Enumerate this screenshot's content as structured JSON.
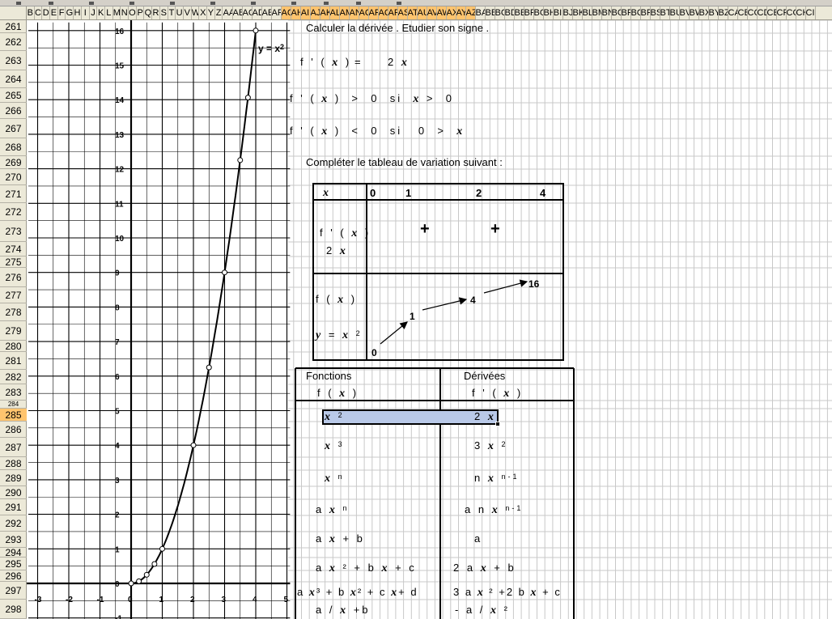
{
  "column_header": {
    "letters": [
      "B",
      "C",
      "D",
      "E",
      "F",
      "G",
      "H",
      "I",
      "J",
      "K",
      "L",
      "M",
      "N",
      "O",
      "P",
      "Q",
      "R",
      "S",
      "T",
      "U",
      "V",
      "W",
      "X",
      "Y",
      "Z",
      "AA",
      "AB",
      "AC",
      "AD",
      "AE",
      "AF",
      "AG",
      "AH",
      "AI",
      "AJ",
      "AK",
      "AL",
      "AM",
      "AN",
      "AO",
      "AP",
      "AQ",
      "AR",
      "AS",
      "AT",
      "AU",
      "AV",
      "AW",
      "AX",
      "AY",
      "AZ",
      "BA",
      "BB",
      "BC",
      "BD",
      "BE",
      "BF",
      "BG",
      "BH",
      "BI",
      "BJ",
      "BK",
      "BL",
      "BM",
      "BN",
      "BO",
      "BP",
      "BQ",
      "BR",
      "BS",
      "BT",
      "BU",
      "BV",
      "BW",
      "BX",
      "BY",
      "BZ",
      "CA",
      "CB",
      "CC",
      "CD",
      "CE",
      "CF",
      "CG",
      "CH",
      "CI"
    ]
  },
  "row_header": {
    "rows": [
      "261",
      "262",
      "263",
      "264",
      "265",
      "266",
      "267",
      "268",
      "269",
      "270",
      "271",
      "272",
      "273",
      "274",
      "275",
      "276",
      "277",
      "278",
      "279",
      "280",
      "281",
      "282",
      "283",
      "284",
      "285",
      "286",
      "287",
      "288",
      "289",
      "290",
      "291",
      "292",
      "293",
      "294",
      "295",
      "296",
      "297",
      "298"
    ],
    "selected": "285"
  },
  "chart": {
    "label_main": "y = x",
    "label_sup": "2",
    "y_ticks": [
      "16",
      "15",
      "14",
      "13",
      "12",
      "11",
      "10",
      "9",
      "8",
      "7",
      "6",
      "5",
      "4",
      "3",
      "2",
      "1",
      "0",
      "-1"
    ],
    "x_ticks": [
      "-3",
      "-2",
      "-1",
      "0",
      "1",
      "2",
      "3",
      "4",
      "5"
    ]
  },
  "chart_data": {
    "type": "scatter",
    "series": [
      {
        "name": "y = x²",
        "x": [
          0,
          0.25,
          0.5,
          0.75,
          1,
          2,
          2.5,
          3,
          3.5,
          3.75,
          4
        ],
        "y": [
          0,
          0.0625,
          0.25,
          0.5625,
          1,
          4,
          6.25,
          9,
          12.25,
          14.06,
          16
        ]
      }
    ],
    "xlim": [
      -3,
      5
    ],
    "ylim": [
      -1,
      16
    ],
    "grid": true,
    "legend": "none"
  },
  "worksheet": {
    "instruction_1": "Calculer la dérivée . Etudier son signe .",
    "derivative_eq": {
      "lhs": "f ' ( x )",
      "eq": "=",
      "rhs": "2 x"
    },
    "positive": {
      "lhs": "f ' ( x )",
      "op": ">",
      "zero": "0",
      "si": "si",
      "cond": "x >",
      "cond_zero": "0"
    },
    "negative": {
      "lhs": "f ' ( x )",
      "op": "<",
      "zero": "0",
      "si": "si",
      "cond": "0 >",
      "cond_var": "x"
    },
    "instruction_2": "Compléter le tableau de variation suivant :"
  },
  "variation_table": {
    "header_var": "x",
    "header_values": [
      "0",
      "1",
      "2",
      "4"
    ],
    "row_derivative": {
      "label": "f ' ( x )",
      "sublabel": "2 x",
      "signs": [
        "+",
        "+"
      ]
    },
    "row_function": {
      "label": "f ( x )",
      "sublabel": "y = x",
      "sublabel_sup": "2",
      "values": [
        "0",
        "1",
        "4",
        "16"
      ]
    }
  },
  "derivatives_table": {
    "headers": {
      "functions": "Fonctions",
      "functions_sub": "f ( x )",
      "derivatives": "Dérivées",
      "derivatives_sub": "f ' ( x )"
    },
    "rows": [
      {
        "f": "x",
        "f_sup": "2",
        "d": "2 x",
        "d_sup": ""
      },
      {
        "f": "x",
        "f_sup": "3",
        "d": "3 x",
        "d_sup": "2"
      },
      {
        "f": "x",
        "f_sup": "n",
        "d": "n x",
        "d_sup": "n-1"
      },
      {
        "f": "a x",
        "f_sup": "n",
        "d": "a n x",
        "d_sup": "n-1"
      },
      {
        "f": "a x + b",
        "f_sup": "",
        "d": "a",
        "d_sup": ""
      },
      {
        "f": "a x ² + b x + c",
        "f_sup": "",
        "d": "2 a x + b",
        "d_sup": ""
      },
      {
        "f": "a x³ + b x² + c x + d",
        "f_sup": "",
        "d": "3 a x ² +2 b x + c",
        "d_sup": ""
      },
      {
        "f": "a / x + b",
        "f_sup": "",
        "d": "- a / x ²",
        "d_sup": ""
      }
    ]
  },
  "colors": {
    "header_bg": "#ece9d8",
    "highlight": "#ffc46e",
    "selection": "#b9c9e8",
    "gridline": "#c8c8c8"
  }
}
